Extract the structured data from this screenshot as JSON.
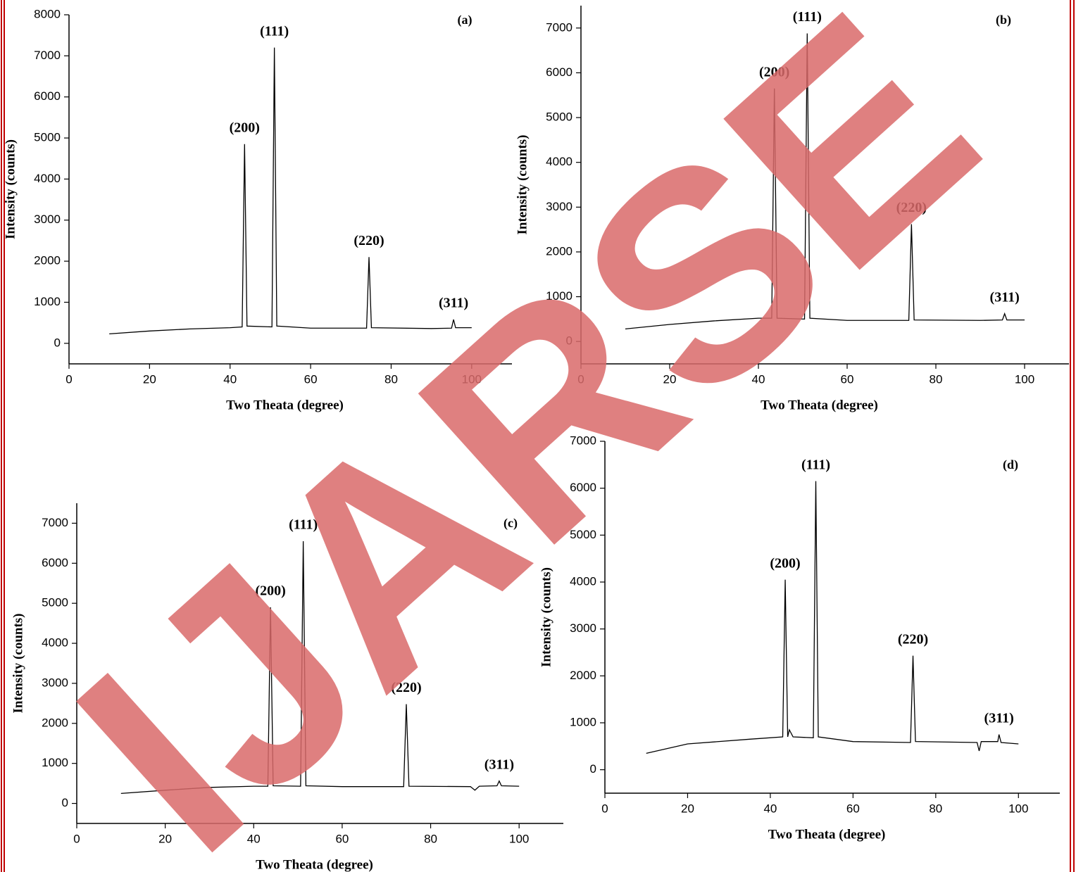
{
  "watermark": "IJARSE",
  "chart_data": [
    {
      "type": "line",
      "label": "(a)",
      "xlabel": "Two Theata (degree)",
      "ylabel": "Intensity (counts)",
      "x": [
        10,
        20,
        30,
        40,
        43,
        43.6,
        44.2,
        50.4,
        51,
        51.6,
        60,
        73.9,
        74.5,
        75.1,
        90,
        95,
        95.5,
        96,
        100
      ],
      "series": [
        {
          "color": "#000000",
          "values": [
            230,
            300,
            350,
            380,
            400,
            4850,
            420,
            400,
            7200,
            420,
            370,
            370,
            2100,
            380,
            360,
            370,
            580,
            380,
            380
          ]
        }
      ],
      "xlim": [
        0,
        110
      ],
      "ylim": [
        -500,
        8000
      ],
      "xticks": [
        0,
        20,
        40,
        60,
        80,
        100
      ],
      "yticks": [
        0,
        1000,
        2000,
        3000,
        4000,
        5000,
        6000,
        7000,
        8000
      ],
      "annotations": [
        {
          "text": "(200)",
          "x": 43.6,
          "y": 4850
        },
        {
          "text": "(111)",
          "x": 51,
          "y": 7200
        },
        {
          "text": "(220)",
          "x": 74.5,
          "y": 2100
        },
        {
          "text": "(311)",
          "x": 95.5,
          "y": 580
        }
      ]
    },
    {
      "type": "line",
      "label": "(b)",
      "xlabel": "Two Theata (degree)",
      "ylabel": "Intensity (counts)",
      "x": [
        10,
        20,
        30,
        40,
        43,
        43.6,
        44.2,
        50.4,
        51,
        51.6,
        60,
        73.9,
        74.5,
        75.1,
        90,
        95,
        95.5,
        96,
        100
      ],
      "series": [
        {
          "color": "#000000",
          "values": [
            280,
            380,
            460,
            520,
            520,
            5650,
            520,
            500,
            6880,
            520,
            470,
            470,
            2620,
            480,
            470,
            480,
            620,
            480,
            480
          ]
        }
      ],
      "xlim": [
        0,
        110
      ],
      "ylim": [
        -500,
        7500
      ],
      "xticks": [
        0,
        20,
        40,
        60,
        80,
        100
      ],
      "yticks": [
        0,
        1000,
        2000,
        3000,
        4000,
        5000,
        6000,
        7000
      ],
      "annotations": [
        {
          "text": "(200)",
          "x": 43.6,
          "y": 5650
        },
        {
          "text": "(111)",
          "x": 51,
          "y": 6880
        },
        {
          "text": "(220)",
          "x": 74.5,
          "y": 2620
        },
        {
          "text": "(311)",
          "x": 95.5,
          "y": 620
        }
      ]
    },
    {
      "type": "line",
      "label": "(c)",
      "xlabel": "Two Theata (degree)",
      "ylabel": "Intensity (counts)",
      "x": [
        10,
        20,
        30,
        40,
        43.2,
        43.8,
        44.4,
        50.6,
        51.2,
        51.8,
        60,
        73.9,
        74.5,
        75.1,
        89,
        90,
        91,
        95,
        95.5,
        96,
        100
      ],
      "series": [
        {
          "color": "#000000",
          "values": [
            250,
            330,
            400,
            430,
            430,
            4900,
            440,
            430,
            6550,
            440,
            420,
            420,
            2480,
            430,
            420,
            330,
            430,
            440,
            560,
            440,
            430
          ]
        }
      ],
      "xlim": [
        0,
        110
      ],
      "ylim": [
        -500,
        7500
      ],
      "xticks": [
        0,
        20,
        40,
        60,
        80,
        100
      ],
      "yticks": [
        0,
        1000,
        2000,
        3000,
        4000,
        5000,
        6000,
        7000
      ],
      "annotations": [
        {
          "text": "(200)",
          "x": 43.8,
          "y": 4900
        },
        {
          "text": "(111)",
          "x": 51.2,
          "y": 6550
        },
        {
          "text": "(220)",
          "x": 74.5,
          "y": 2480
        },
        {
          "text": "(311)",
          "x": 95.5,
          "y": 560
        }
      ]
    },
    {
      "type": "line",
      "label": "(d)",
      "xlabel": "Two Theata (degree)",
      "ylabel": "Intensity (counts)",
      "x": [
        10,
        20,
        35,
        43,
        43.6,
        44.2,
        44.6,
        45.5,
        50.4,
        51,
        51.6,
        60,
        73.9,
        74.5,
        75.1,
        90,
        90.5,
        91,
        95,
        95.3,
        95.8,
        100
      ],
      "series": [
        {
          "color": "#000000",
          "values": [
            350,
            550,
            650,
            700,
            4050,
            700,
            850,
            700,
            680,
            6150,
            700,
            600,
            580,
            2430,
            600,
            580,
            400,
            600,
            600,
            750,
            580,
            550
          ]
        }
      ],
      "xlim": [
        0,
        110
      ],
      "ylim": [
        -500,
        7000
      ],
      "xticks": [
        0,
        20,
        40,
        60,
        80,
        100
      ],
      "yticks": [
        0,
        1000,
        2000,
        3000,
        4000,
        5000,
        6000,
        7000
      ],
      "annotations": [
        {
          "text": "(200)",
          "x": 43.6,
          "y": 4050
        },
        {
          "text": "(111)",
          "x": 51,
          "y": 6150
        },
        {
          "text": "(220)",
          "x": 74.5,
          "y": 2430
        },
        {
          "text": "(311)",
          "x": 95.3,
          "y": 750
        }
      ]
    }
  ]
}
